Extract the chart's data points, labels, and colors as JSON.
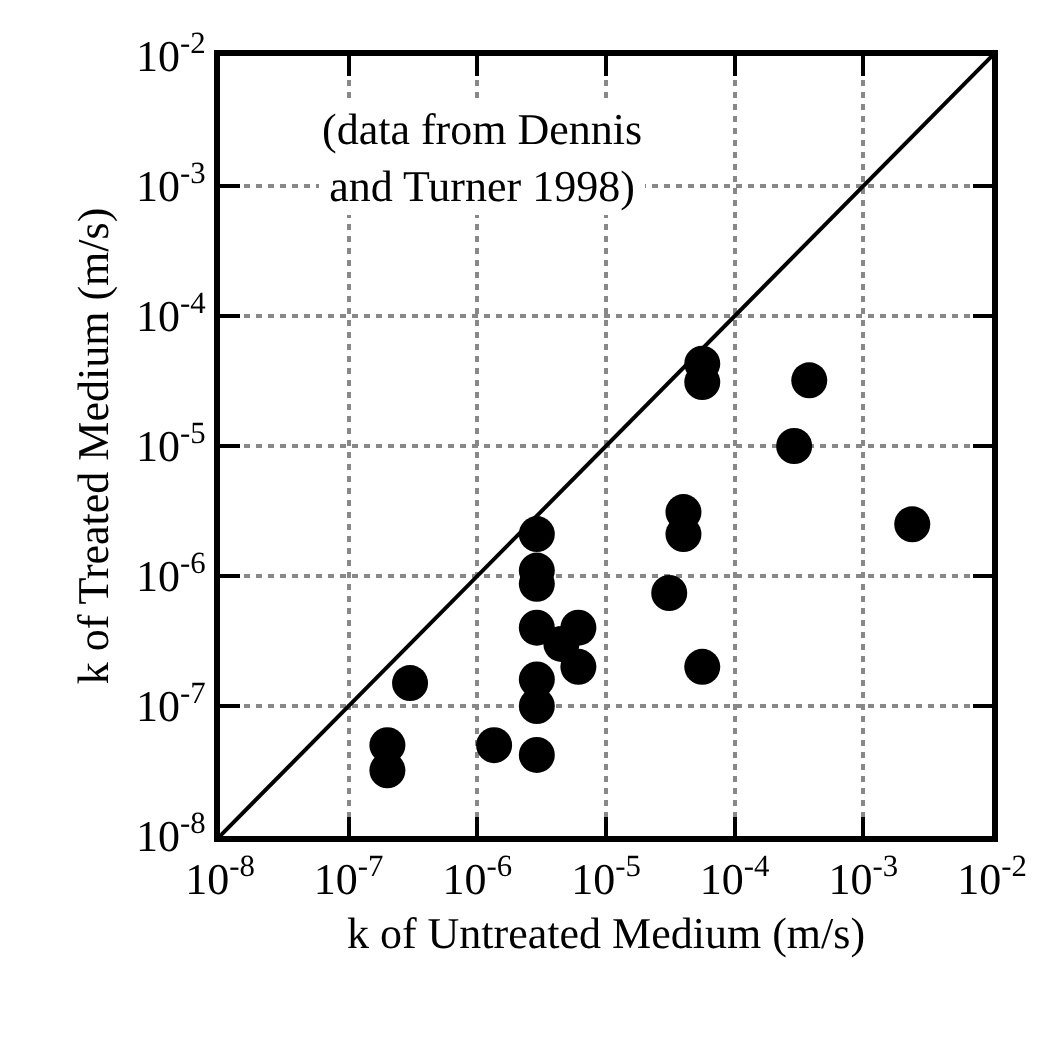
{
  "chart_data": {
    "type": "scatter",
    "xlabel": "k of Untreated Medium (m/s)",
    "ylabel": "k of Treated Medium (m/s)",
    "annotations": [
      "(data from Dennis\nand Turner 1998)"
    ],
    "log": "xy",
    "grid": true,
    "marker": "circle",
    "xlim": [
      1e-08,
      0.01
    ],
    "ylim": [
      1e-08,
      0.01
    ],
    "xticks": [
      {
        "value": 1e-08,
        "label": "10$^{-8}$"
      },
      {
        "value": 1e-07,
        "label": "10$^{-7}$"
      },
      {
        "value": 1e-06,
        "label": "10$^{-6}$"
      },
      {
        "value": 1e-05,
        "label": "10$^{-5}$"
      },
      {
        "value": 0.0001,
        "label": "10$^{-4}$"
      },
      {
        "value": 0.001,
        "label": "10$^{-3}$"
      },
      {
        "value": 0.01,
        "label": "10$^{-2}$"
      }
    ],
    "yticks": [
      {
        "value": 1e-08,
        "label": "10$^{-8}$"
      },
      {
        "value": 1e-07,
        "label": "10$^{-7}$"
      },
      {
        "value": 1e-06,
        "label": "10$^{-6}$"
      },
      {
        "value": 1e-05,
        "label": "10$^{-5}$"
      },
      {
        "value": 0.0001,
        "label": "10$^{-4}$"
      },
      {
        "value": 0.001,
        "label": "10$^{-3}$"
      },
      {
        "value": 0.01,
        "label": "10$^{-2}$"
      }
    ],
    "series": [
      {
        "color": "#000000",
        "x": [
          2.9e-06,
          2.9e-06,
          2.9e-06,
          2.9e-06,
          6.1e-06,
          4.5e-06,
          6.1e-06,
          2.9e-06,
          2.9e-06,
          3e-07,
          2e-07,
          2e-07,
          1.35e-06,
          2.9e-06,
          5.6e-05,
          5.6e-05,
          0.00038,
          0.00029,
          4e-05,
          4e-05,
          3.1e-05,
          5.6e-05,
          0.0024
        ],
        "values": [
          2.1e-06,
          1.1e-06,
          8.7e-07,
          4e-07,
          4e-07,
          3e-07,
          2e-07,
          1.6e-07,
          1e-07,
          1.5e-07,
          5e-08,
          3.2e-08,
          5e-08,
          4.2e-08,
          4.3e-05,
          3.1e-05,
          3.2e-05,
          1e-05,
          3.1e-06,
          2.1e-06,
          7.4e-07,
          2e-07,
          2.5e-06
        ]
      },
      {
        "type": "line",
        "color": "#000000",
        "line_style": "solid",
        "marker": "none",
        "x": [
          1e-08,
          0.01
        ],
        "values": [
          1e-08,
          0.01
        ]
      }
    ]
  }
}
